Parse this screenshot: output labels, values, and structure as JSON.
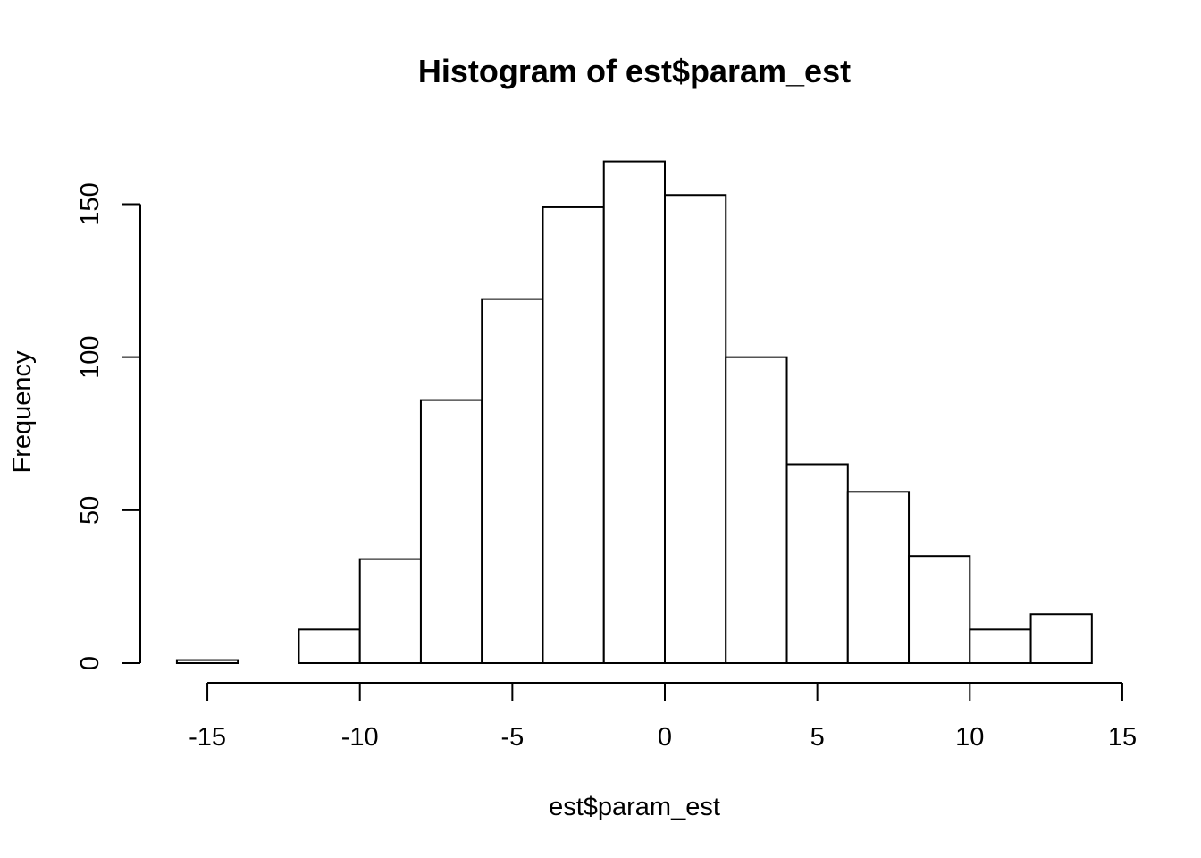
{
  "chart_data": {
    "type": "bar",
    "subtype": "histogram",
    "title": "Histogram of est$param_est",
    "xlabel": "est$param_est",
    "ylabel": "Frequency",
    "bins": [
      {
        "x0": -16,
        "x1": -14,
        "count": 1
      },
      {
        "x0": -14,
        "x1": -12,
        "count": 0
      },
      {
        "x0": -12,
        "x1": -10,
        "count": 11
      },
      {
        "x0": -10,
        "x1": -8,
        "count": 34
      },
      {
        "x0": -8,
        "x1": -6,
        "count": 86
      },
      {
        "x0": -6,
        "x1": -4,
        "count": 119
      },
      {
        "x0": -4,
        "x1": -2,
        "count": 149
      },
      {
        "x0": -2,
        "x1": 0,
        "count": 164
      },
      {
        "x0": 0,
        "x1": 2,
        "count": 153
      },
      {
        "x0": 2,
        "x1": 4,
        "count": 100
      },
      {
        "x0": 4,
        "x1": 6,
        "count": 65
      },
      {
        "x0": 6,
        "x1": 8,
        "count": 56
      },
      {
        "x0": 8,
        "x1": 10,
        "count": 35
      },
      {
        "x0": 10,
        "x1": 12,
        "count": 11
      },
      {
        "x0": 12,
        "x1": 14,
        "count": 16
      }
    ],
    "xlim": [
      -15,
      15
    ],
    "ylim": [
      0,
      150
    ],
    "x_ticks": [
      {
        "value": -15,
        "label": "-15"
      },
      {
        "value": -10,
        "label": "-10"
      },
      {
        "value": -5,
        "label": "-5"
      },
      {
        "value": 0,
        "label": "0"
      },
      {
        "value": 5,
        "label": "5"
      },
      {
        "value": 10,
        "label": "10"
      },
      {
        "value": 15,
        "label": "15"
      }
    ],
    "y_ticks": [
      {
        "value": 0,
        "label": "0"
      },
      {
        "value": 50,
        "label": "50"
      },
      {
        "value": 100,
        "label": "100"
      },
      {
        "value": 150,
        "label": "150"
      }
    ],
    "bar_fill": "#ffffff",
    "bar_stroke": "#000000",
    "grid": false,
    "legend": false
  }
}
